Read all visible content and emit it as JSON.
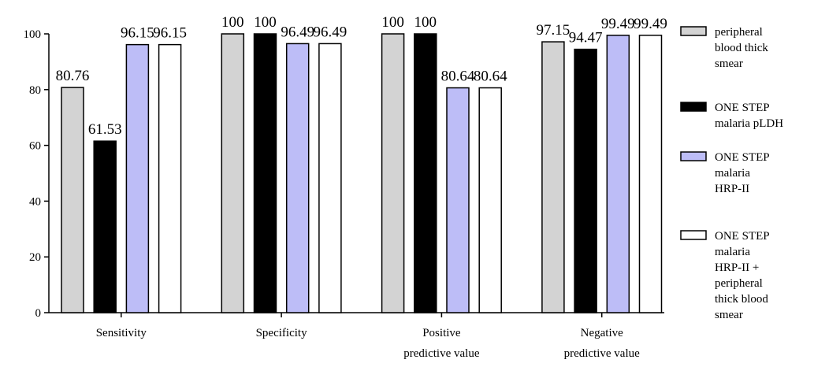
{
  "chart_data": {
    "type": "bar",
    "title": "",
    "xlabel": "",
    "ylabel": "",
    "ylim": [
      0,
      100
    ],
    "yticks": [
      0,
      20,
      40,
      60,
      80,
      100
    ],
    "grid": false,
    "legend_position": "right",
    "categories": [
      [
        "Sensitivity"
      ],
      [
        "Specificity"
      ],
      [
        "Positive",
        "predictive value"
      ],
      [
        "Negative",
        "predictive value"
      ]
    ],
    "series": [
      {
        "name": "peripheral blood thick smear",
        "name_lines": [
          "peripheral",
          "blood thick",
          "smear"
        ],
        "color": "#d3d3d3",
        "values": [
          80.76,
          100,
          100,
          97.15
        ],
        "labels": [
          "80.76",
          "100",
          "100",
          "97.15"
        ]
      },
      {
        "name": "ONE STEP malaria pLDH",
        "name_lines": [
          "ONE STEP",
          "malaria pLDH"
        ],
        "color": "#000000",
        "values": [
          61.53,
          100,
          100,
          94.47
        ],
        "labels": [
          "61.53",
          "100",
          "100",
          "94.47"
        ]
      },
      {
        "name": "ONE STEP malaria HRP-II",
        "name_lines": [
          "ONE STEP",
          "malaria",
          "HRP-II"
        ],
        "color": "#bdbdf7",
        "values": [
          96.15,
          96.49,
          80.64,
          99.49
        ],
        "labels": [
          "96.15",
          "96.49",
          "80.64",
          "99.49"
        ]
      },
      {
        "name": "ONE STEP malaria HRP-II + peripheral thick blood smear",
        "name_lines": [
          "ONE STEP",
          "malaria",
          "HRP-II +",
          "peripheral",
          "thick blood",
          "smear"
        ],
        "color": "#ffffff",
        "values": [
          96.15,
          96.49,
          80.64,
          99.49
        ],
        "labels": [
          "96.15",
          "96.49",
          "80.64",
          "99.49"
        ]
      }
    ]
  }
}
